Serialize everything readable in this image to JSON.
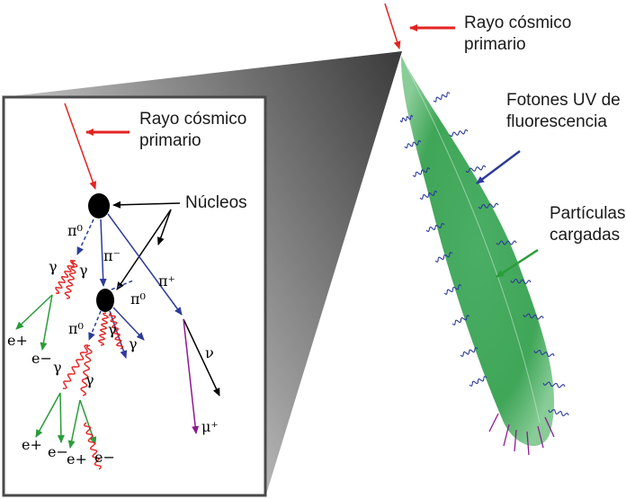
{
  "labels": {
    "primary_top": "Rayo cósmico\nprimario",
    "primary_inset": "Rayo cósmico\nprimario",
    "nuclei": "Núcleos",
    "uv_photons": "Fotones UV de\nfluorescencia",
    "charged": "Partículas\ncargadas"
  },
  "particles": {
    "pi0_a": "π⁰",
    "pi_minus": "π⁻",
    "pi_plus": "π⁺",
    "pi0_b": "π⁰",
    "pi0_c": "π⁰",
    "gamma": "γ",
    "nu": "ν",
    "mu_plus": "μ⁺",
    "e_plus": "e+",
    "e_minus": "e−"
  },
  "colors": {
    "primary_arrow": "#e32322",
    "pion": "#2d3b9b",
    "gamma_wave": "#e32322",
    "electron": "#2a9c3a",
    "muon": "#8e1a8e",
    "neutrino": "#000000",
    "shower": "#2f9e49",
    "uv_arrow": "#2d3b9b",
    "charged_arrow": "#2a9c3a"
  }
}
